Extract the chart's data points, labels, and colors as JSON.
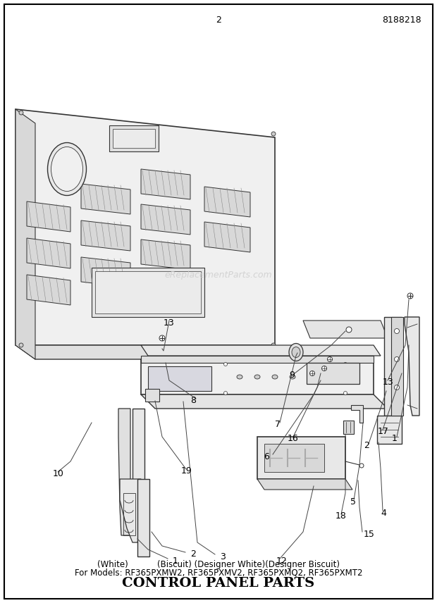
{
  "title": "CONTROL PANEL PARTS",
  "subtitle1": "For Models: RF365PXMW2, RF365PXMV2, RF365PXMQ2, RF365PXMT2",
  "subtitle2": "(White)           (Biscuit) (Designer White)(Designer Biscuit)",
  "page_number": "2",
  "part_number": "8188218",
  "watermark": "eReplacementParts.com",
  "background_color": "#ffffff",
  "line_color": "#333333",
  "title_fontsize": 14,
  "subtitle_fontsize": 8.5,
  "label_fontsize": 9,
  "footer_fontsize": 9
}
